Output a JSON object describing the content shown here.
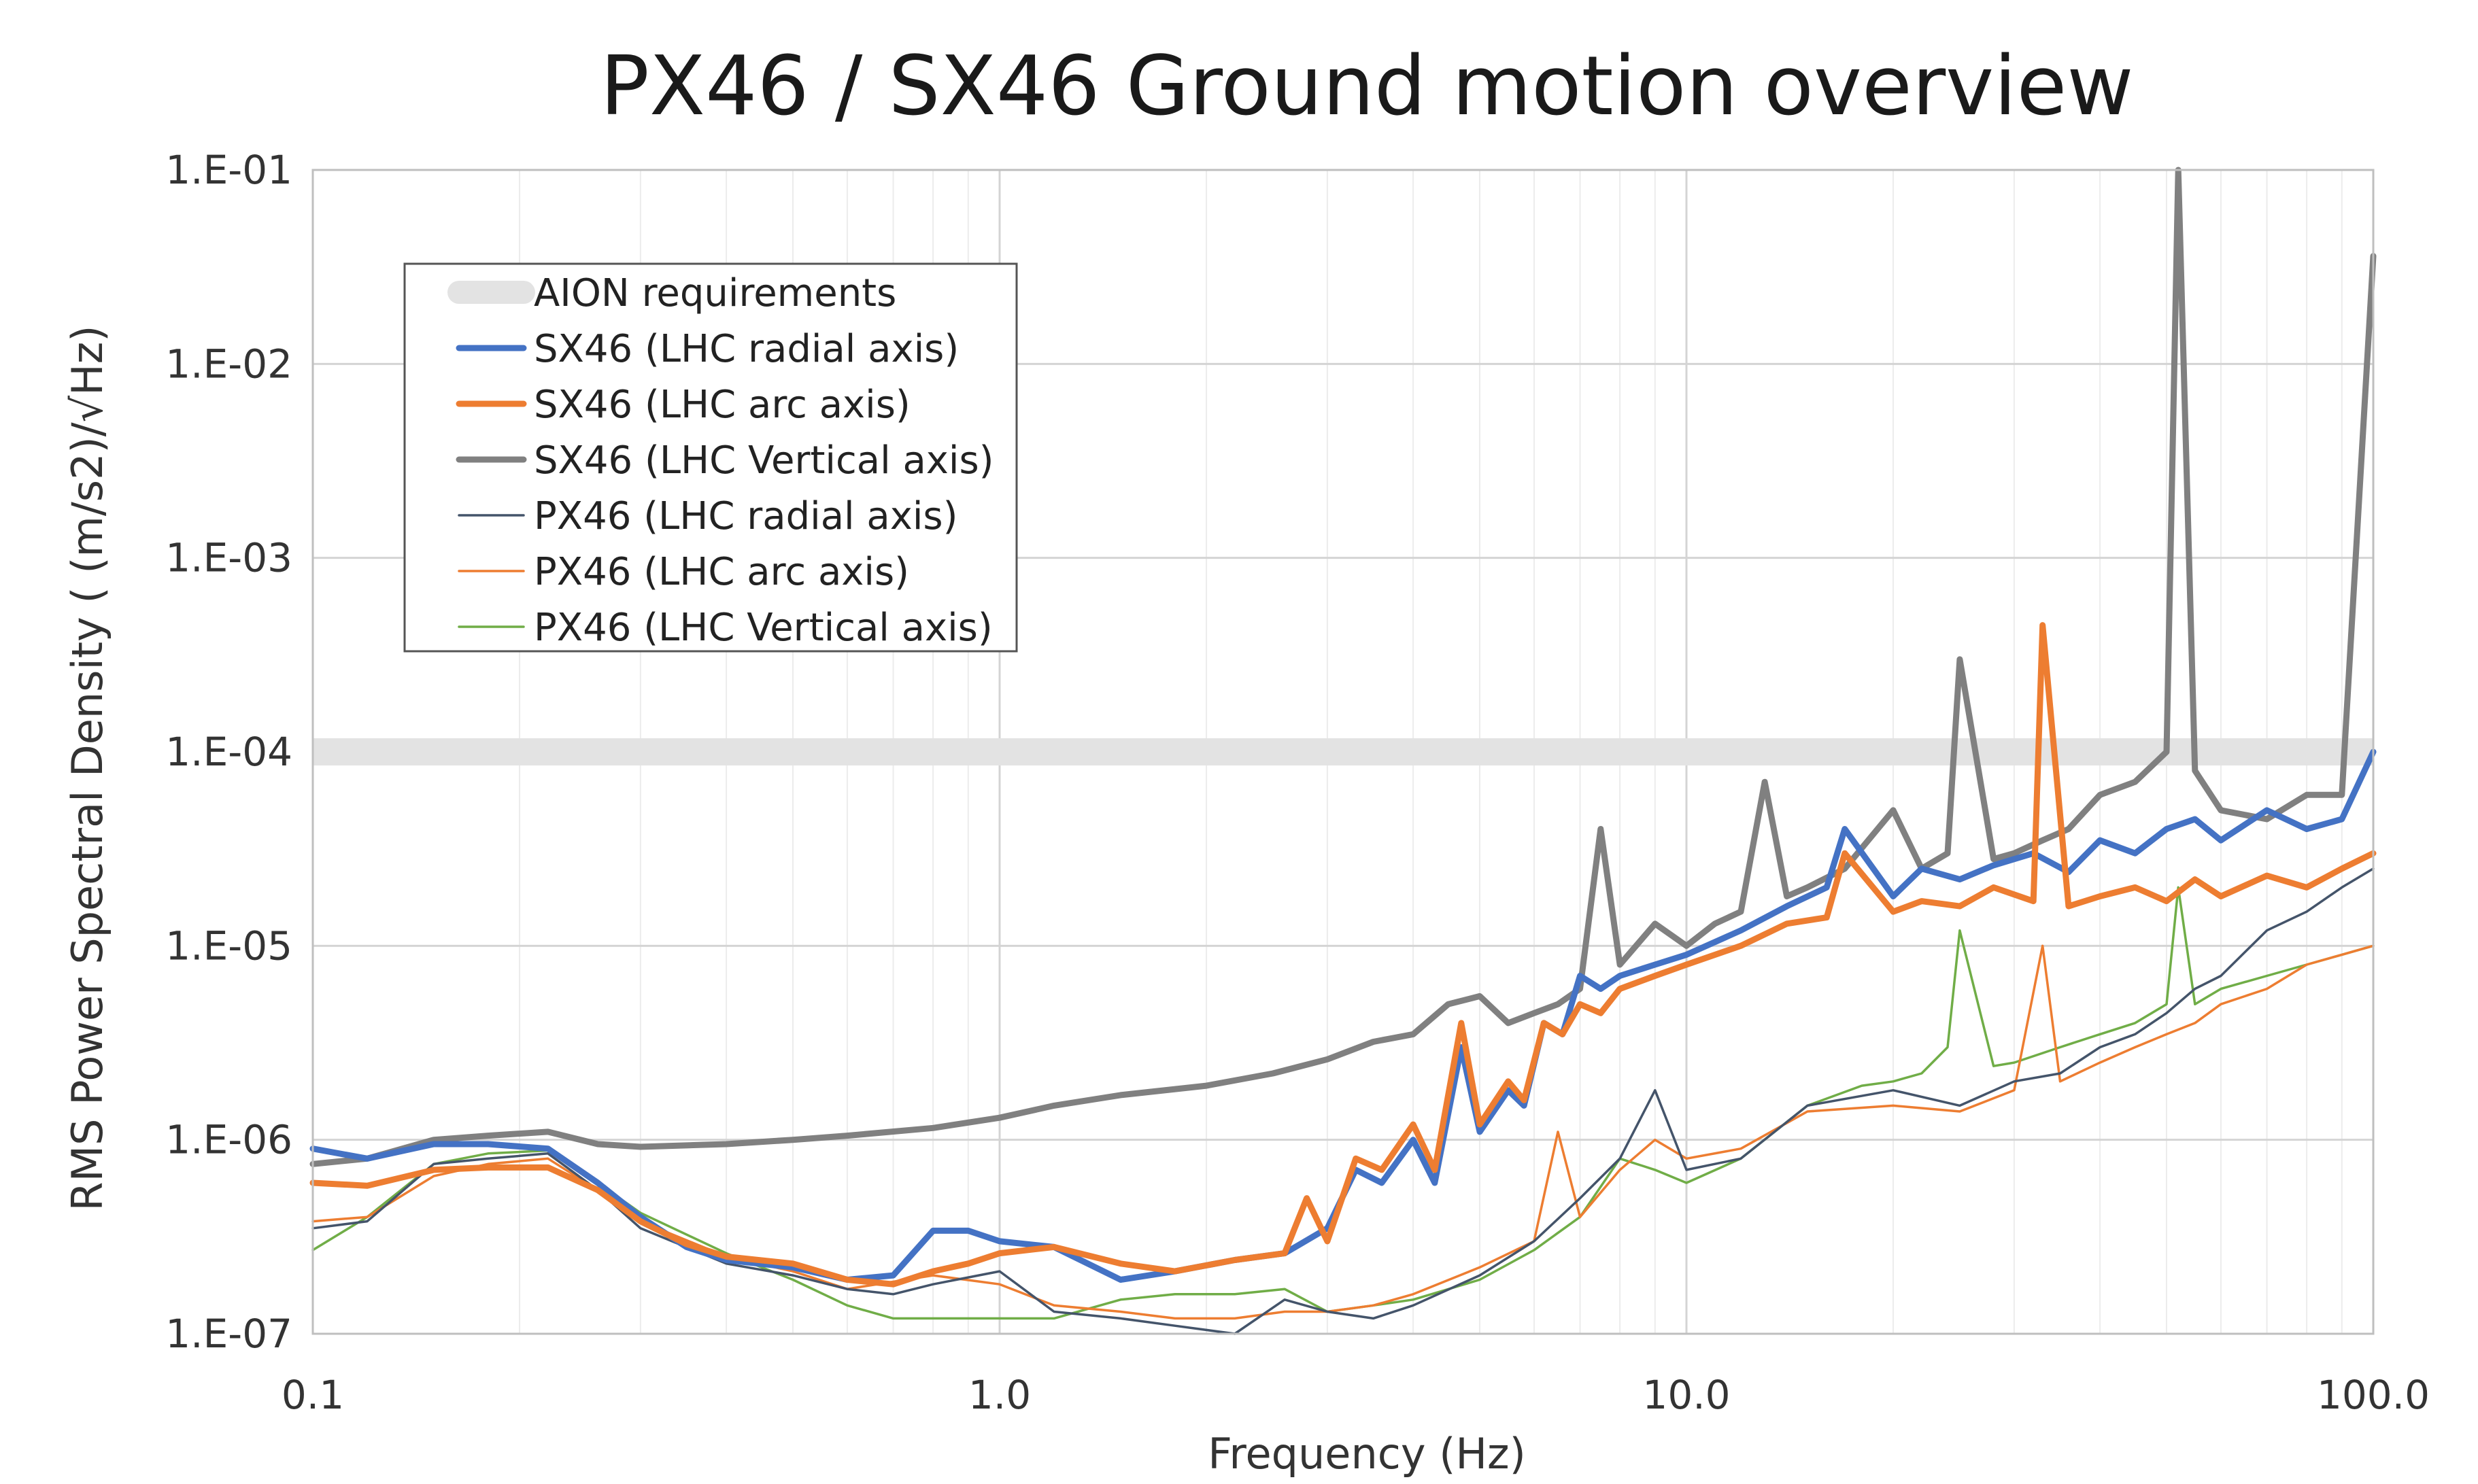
{
  "chart_data": {
    "type": "line",
    "title": "PX46 / SX46 Ground motion overview",
    "xlabel": "Frequency (Hz)",
    "ylabel": "RMS Power Spectral Density ( (m/s2)/√Hz)",
    "xscale": "log",
    "yscale": "log",
    "xlim": [
      0.1,
      100
    ],
    "ylim": [
      1e-07,
      0.1
    ],
    "xticks": [
      0.1,
      1,
      10,
      100
    ],
    "xtick_labels": [
      "0.1",
      "1.0",
      "10.0",
      "100.0"
    ],
    "yticks": [
      0.1,
      0.01,
      0.001,
      0.0001,
      1e-05,
      1e-06,
      1e-07
    ],
    "ytick_labels": [
      "1.E-01",
      "1.E-02",
      "1.E-03",
      "1.E-04",
      "1.E-05",
      "1.E-06",
      "1.E-07"
    ],
    "grid": true,
    "legend_position": "top-left",
    "requirement": {
      "name": "AION requirements",
      "value": 0.0001,
      "color": "#e3e3e3"
    },
    "series": [
      {
        "name": "SX46 (LHC radial axis)",
        "color": "#4472c4",
        "weight": "thick",
        "x": [
          0.1,
          0.12,
          0.15,
          0.18,
          0.22,
          0.26,
          0.3,
          0.35,
          0.4,
          0.5,
          0.6,
          0.7,
          0.8,
          0.9,
          1.0,
          1.2,
          1.5,
          1.8,
          2.2,
          2.6,
          3.0,
          3.3,
          3.6,
          4.0,
          4.3,
          4.7,
          5.0,
          5.5,
          5.8,
          6.2,
          6.6,
          7.0,
          7.5,
          8.0,
          9.0,
          10,
          12,
          14,
          16,
          17,
          20,
          22,
          25,
          28,
          32,
          36,
          40,
          45,
          50,
          55,
          60,
          70,
          80,
          90,
          100
        ],
        "y": [
          9e-07,
          8e-07,
          9.5e-07,
          9.5e-07,
          9e-07,
          6e-07,
          4e-07,
          2.8e-07,
          2.4e-07,
          2.2e-07,
          1.9e-07,
          2e-07,
          3.4e-07,
          3.4e-07,
          3e-07,
          2.8e-07,
          1.9e-07,
          2.1e-07,
          2.4e-07,
          2.6e-07,
          3.5e-07,
          7e-07,
          6e-07,
          1e-06,
          6e-07,
          3e-06,
          1.1e-06,
          1.8e-06,
          1.5e-06,
          4e-06,
          3.5e-06,
          7e-06,
          6e-06,
          7e-06,
          8e-06,
          9e-06,
          1.2e-05,
          1.6e-05,
          2e-05,
          4e-05,
          1.8e-05,
          2.5e-05,
          2.2e-05,
          2.6e-05,
          3e-05,
          2.4e-05,
          3.5e-05,
          3e-05,
          4e-05,
          4.5e-05,
          3.5e-05,
          5e-05,
          4e-05,
          4.5e-05,
          0.0001
        ]
      },
      {
        "name": "SX46 (LHC arc axis)",
        "color": "#ed7d31",
        "weight": "thick",
        "x": [
          0.1,
          0.12,
          0.15,
          0.18,
          0.22,
          0.26,
          0.3,
          0.35,
          0.4,
          0.5,
          0.6,
          0.7,
          0.8,
          0.9,
          1.0,
          1.2,
          1.5,
          1.8,
          2.2,
          2.6,
          2.8,
          3.0,
          3.3,
          3.6,
          4.0,
          4.3,
          4.7,
          5.0,
          5.5,
          5.8,
          6.2,
          6.6,
          7.0,
          7.5,
          8.0,
          9.0,
          10,
          12,
          14,
          16,
          17,
          20,
          22,
          25,
          28,
          32,
          33,
          36,
          40,
          45,
          50,
          55,
          60,
          70,
          80,
          90,
          100
        ],
        "y": [
          6e-07,
          5.8e-07,
          7e-07,
          7.2e-07,
          7.2e-07,
          5.5e-07,
          3.8e-07,
          2.9e-07,
          2.5e-07,
          2.3e-07,
          1.9e-07,
          1.8e-07,
          2.1e-07,
          2.3e-07,
          2.6e-07,
          2.8e-07,
          2.3e-07,
          2.1e-07,
          2.4e-07,
          2.6e-07,
          5e-07,
          3e-07,
          8e-07,
          7e-07,
          1.2e-06,
          7e-07,
          4e-06,
          1.2e-06,
          2e-06,
          1.6e-06,
          4e-06,
          3.5e-06,
          5e-06,
          4.5e-06,
          6e-06,
          7e-06,
          8e-06,
          1e-05,
          1.3e-05,
          1.4e-05,
          3e-05,
          1.5e-05,
          1.7e-05,
          1.6e-05,
          2e-05,
          1.7e-05,
          0.00045,
          1.6e-05,
          1.8e-05,
          2e-05,
          1.7e-05,
          2.2e-05,
          1.8e-05,
          2.3e-05,
          2e-05,
          2.5e-05,
          3e-05
        ]
      },
      {
        "name": "SX46 (LHC Vertical axis)",
        "color": "#808080",
        "weight": "thick",
        "x": [
          0.1,
          0.12,
          0.15,
          0.18,
          0.22,
          0.26,
          0.3,
          0.4,
          0.5,
          0.6,
          0.8,
          1.0,
          1.2,
          1.5,
          2.0,
          2.5,
          3.0,
          3.5,
          4.0,
          4.5,
          5.0,
          5.5,
          6.0,
          6.5,
          7.0,
          7.5,
          8.0,
          9.0,
          10,
          11,
          12,
          13,
          14,
          15,
          17,
          20,
          22,
          24,
          25,
          28,
          30,
          33,
          36,
          40,
          45,
          50,
          52,
          55,
          60,
          70,
          80,
          90,
          100
        ],
        "y": [
          7.5e-07,
          8e-07,
          1e-06,
          1.05e-06,
          1.1e-06,
          9.5e-07,
          9.2e-07,
          9.5e-07,
          1e-06,
          1.05e-06,
          1.15e-06,
          1.3e-06,
          1.5e-06,
          1.7e-06,
          1.9e-06,
          2.2e-06,
          2.6e-06,
          3.2e-06,
          3.5e-06,
          5e-06,
          5.5e-06,
          4e-06,
          4.5e-06,
          5e-06,
          6e-06,
          4e-05,
          8e-06,
          1.3e-05,
          1e-05,
          1.3e-05,
          1.5e-05,
          7e-05,
          1.8e-05,
          2e-05,
          2.5e-05,
          5e-05,
          2.5e-05,
          3e-05,
          0.0003,
          2.8e-05,
          3e-05,
          3.5e-05,
          4e-05,
          6e-05,
          7e-05,
          0.0001,
          0.1,
          8e-05,
          5e-05,
          4.5e-05,
          6e-05,
          6e-05,
          0.036
        ]
      },
      {
        "name": "PX46 (LHC radial axis)",
        "color": "#44546a",
        "weight": "thin",
        "x": [
          0.1,
          0.12,
          0.15,
          0.18,
          0.22,
          0.26,
          0.3,
          0.4,
          0.5,
          0.6,
          0.7,
          0.8,
          1.0,
          1.2,
          1.5,
          1.8,
          2.2,
          2.6,
          3.0,
          3.5,
          4.0,
          5.0,
          6.0,
          7.0,
          8.0,
          9.0,
          10,
          12,
          15,
          20,
          25,
          30,
          35,
          40,
          45,
          50,
          55,
          60,
          70,
          80,
          90,
          100
        ],
        "y": [
          3.5e-07,
          3.8e-07,
          7.5e-07,
          8e-07,
          8.5e-07,
          5.5e-07,
          3.5e-07,
          2.3e-07,
          2e-07,
          1.7e-07,
          1.6e-07,
          1.8e-07,
          2.1e-07,
          1.3e-07,
          1.2e-07,
          1.1e-07,
          1e-07,
          1.5e-07,
          1.3e-07,
          1.2e-07,
          1.4e-07,
          2e-07,
          3e-07,
          5e-07,
          8e-07,
          1.8e-06,
          7e-07,
          8e-07,
          1.5e-06,
          1.8e-06,
          1.5e-06,
          2e-06,
          2.2e-06,
          3e-06,
          3.5e-06,
          4.5e-06,
          6e-06,
          7e-06,
          1.2e-05,
          1.5e-05,
          2e-05,
          2.5e-05
        ]
      },
      {
        "name": "PX46 (LHC arc axis)",
        "color": "#ed7d31",
        "weight": "thin",
        "x": [
          0.1,
          0.12,
          0.15,
          0.18,
          0.22,
          0.26,
          0.3,
          0.4,
          0.5,
          0.6,
          0.8,
          1.0,
          1.2,
          1.5,
          1.8,
          2.2,
          2.6,
          3.0,
          3.5,
          4.0,
          5.0,
          6.0,
          6.5,
          7.0,
          8.0,
          9.0,
          10,
          12,
          15,
          20,
          25,
          30,
          33,
          35,
          40,
          45,
          50,
          55,
          60,
          70,
          80,
          90,
          100
        ],
        "y": [
          3.8e-07,
          4e-07,
          6.5e-07,
          7.5e-07,
          8e-07,
          5.5e-07,
          3.8e-07,
          2.5e-07,
          2.1e-07,
          1.7e-07,
          2e-07,
          1.8e-07,
          1.4e-07,
          1.3e-07,
          1.2e-07,
          1.2e-07,
          1.3e-07,
          1.3e-07,
          1.4e-07,
          1.6e-07,
          2.2e-07,
          3e-07,
          1.1e-06,
          4e-07,
          7e-07,
          1e-06,
          8e-07,
          9e-07,
          1.4e-06,
          1.5e-06,
          1.4e-06,
          1.8e-06,
          1e-05,
          2e-06,
          2.5e-06,
          3e-06,
          3.5e-06,
          4e-06,
          5e-06,
          6e-06,
          8e-06,
          9e-06,
          1e-05
        ]
      },
      {
        "name": "PX46 (LHC Vertical axis)",
        "color": "#70ad47",
        "weight": "thin",
        "x": [
          0.1,
          0.12,
          0.15,
          0.18,
          0.22,
          0.26,
          0.3,
          0.4,
          0.5,
          0.6,
          0.7,
          0.8,
          1.0,
          1.2,
          1.5,
          1.8,
          2.2,
          2.6,
          3.0,
          3.5,
          4.0,
          5.0,
          6.0,
          7.0,
          8.0,
          9.0,
          10,
          12,
          15,
          18,
          20,
          22,
          24,
          25,
          28,
          30,
          35,
          40,
          45,
          50,
          52,
          55,
          60,
          70,
          80,
          90,
          100
        ],
        "y": [
          2.7e-07,
          4e-07,
          7.5e-07,
          8.5e-07,
          8.8e-07,
          6e-07,
          4.2e-07,
          2.6e-07,
          1.9e-07,
          1.4e-07,
          1.2e-07,
          1.2e-07,
          1.2e-07,
          1.2e-07,
          1.5e-07,
          1.6e-07,
          1.6e-07,
          1.7e-07,
          1.3e-07,
          1.4e-07,
          1.5e-07,
          1.9e-07,
          2.7e-07,
          4e-07,
          8e-07,
          7e-07,
          6e-07,
          8e-07,
          1.5e-06,
          1.9e-06,
          2e-06,
          2.2e-06,
          3e-06,
          1.2e-05,
          2.4e-06,
          2.5e-06,
          3e-06,
          3.5e-06,
          4e-06,
          5e-06,
          2e-05,
          5e-06,
          6e-06,
          7e-06,
          8e-06,
          9e-06,
          1e-05
        ]
      }
    ]
  }
}
